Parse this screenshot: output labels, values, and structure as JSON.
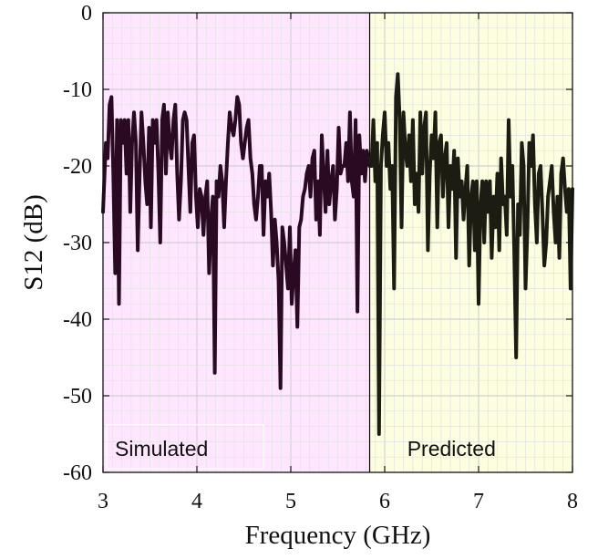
{
  "chart_data": {
    "type": "line",
    "title": "",
    "xlabel": "Frequency (GHz)",
    "ylabel": "S12 (dB)",
    "xlim": [
      3,
      8
    ],
    "ylim": [
      -60,
      0
    ],
    "xticks": [
      3,
      4,
      5,
      6,
      7,
      8
    ],
    "xtick_labels": [
      "3",
      "4",
      "5",
      "6",
      "7",
      "8"
    ],
    "yticks": [
      0,
      -10,
      -20,
      -30,
      -40,
      -50,
      -60
    ],
    "ytick_labels": [
      "0",
      "-10",
      "-20",
      "-30",
      "-40",
      "-50",
      "-60"
    ],
    "grid": true,
    "regions": [
      {
        "label": "Simulated",
        "x_range": [
          3,
          5.84
        ],
        "color": "#ffe6ff"
      },
      {
        "label": "Predicted",
        "x_range": [
          5.84,
          8
        ],
        "color": "#fdfde0"
      }
    ],
    "boundary_x": 5.84,
    "series": [
      {
        "color": "#2a0a22",
        "x": [
          3.0,
          3.03,
          3.05,
          3.07,
          3.09,
          3.11,
          3.13,
          3.15,
          3.17,
          3.19,
          3.21,
          3.23,
          3.25,
          3.27,
          3.29,
          3.31,
          3.33,
          3.35,
          3.37,
          3.39,
          3.41,
          3.43,
          3.45,
          3.47,
          3.49,
          3.51,
          3.53,
          3.55,
          3.57,
          3.59,
          3.61,
          3.63,
          3.65,
          3.67,
          3.69,
          3.71,
          3.73,
          3.75,
          3.77,
          3.79,
          3.81,
          3.83,
          3.85,
          3.87,
          3.89,
          3.91,
          3.93,
          3.95,
          3.97,
          3.99,
          4.01,
          4.03,
          4.05,
          4.07,
          4.09,
          4.11,
          4.13,
          4.15,
          4.17,
          4.19,
          4.21,
          4.23,
          4.25,
          4.27,
          4.29,
          4.31,
          4.33,
          4.35,
          4.37,
          4.39,
          4.41,
          4.43,
          4.45,
          4.47,
          4.49,
          4.51,
          4.53,
          4.55,
          4.57,
          4.59,
          4.61,
          4.63,
          4.65,
          4.67,
          4.69,
          4.71,
          4.73,
          4.75,
          4.77,
          4.79,
          4.81,
          4.83,
          4.85,
          4.87,
          4.89,
          4.91,
          4.93,
          4.95,
          4.97,
          4.99,
          5.01,
          5.03,
          5.05,
          5.07,
          5.09,
          5.11,
          5.13,
          5.15,
          5.17,
          5.19,
          5.21,
          5.23,
          5.25,
          5.27,
          5.29,
          5.31,
          5.33,
          5.35,
          5.37,
          5.39,
          5.41,
          5.43,
          5.45,
          5.47,
          5.49,
          5.51,
          5.53,
          5.55,
          5.57,
          5.59,
          5.61,
          5.63,
          5.65,
          5.67,
          5.69,
          5.71,
          5.73,
          5.75,
          5.77,
          5.79,
          5.81,
          5.84
        ],
        "values": [
          -26,
          -17,
          -19,
          -12,
          -11,
          -21,
          -34,
          -14,
          -38,
          -14,
          -17,
          -14,
          -21,
          -14,
          -26,
          -17,
          -13,
          -17,
          -31,
          -21,
          -13,
          -17,
          -22,
          -25,
          -15,
          -28,
          -14,
          -17,
          -14,
          -21,
          -30,
          -14,
          -12,
          -21,
          -13,
          -17,
          -19,
          -14,
          -12,
          -21,
          -27,
          -22,
          -14,
          -13,
          -14,
          -20,
          -26,
          -17,
          -16,
          -24,
          -28,
          -23,
          -24,
          -29,
          -24,
          -22,
          -34,
          -27,
          -24,
          -47,
          -22,
          -24,
          -20,
          -22,
          -28,
          -22,
          -17,
          -13,
          -15,
          -16,
          -14,
          -11,
          -12,
          -17,
          -19,
          -17,
          -15,
          -14,
          -19,
          -21,
          -25,
          -27,
          -24,
          -20,
          -20,
          -29,
          -22,
          -24,
          -21,
          -26,
          -33,
          -27,
          -30,
          -35,
          -49,
          -28,
          -30,
          -33,
          -36,
          -28,
          -38,
          -34,
          -31,
          -41,
          -28,
          -27,
          -24,
          -23,
          -21,
          -20,
          -24,
          -19,
          -18,
          -27,
          -22,
          -29,
          -16,
          -21,
          -26,
          -18,
          -25,
          -22,
          -20,
          -27,
          -23,
          -15,
          -21,
          -20,
          -20,
          -17,
          -22,
          -13,
          -22,
          -24,
          -14,
          -39,
          -16,
          -21,
          -18,
          -22,
          -18,
          -20
        ]
      },
      {
        "color": "#1c1c12",
        "x": [
          5.84,
          5.86,
          5.88,
          5.9,
          5.92,
          5.94,
          5.96,
          5.98,
          6.0,
          6.02,
          6.04,
          6.06,
          6.08,
          6.1,
          6.12,
          6.14,
          6.16,
          6.18,
          6.2,
          6.22,
          6.24,
          6.26,
          6.28,
          6.3,
          6.32,
          6.34,
          6.36,
          6.38,
          6.4,
          6.42,
          6.44,
          6.46,
          6.48,
          6.5,
          6.52,
          6.54,
          6.56,
          6.58,
          6.6,
          6.62,
          6.64,
          6.66,
          6.68,
          6.7,
          6.72,
          6.74,
          6.76,
          6.78,
          6.8,
          6.82,
          6.84,
          6.86,
          6.88,
          6.9,
          6.92,
          6.94,
          6.96,
          6.98,
          7.0,
          7.02,
          7.04,
          7.06,
          7.08,
          7.1,
          7.12,
          7.14,
          7.16,
          7.18,
          7.2,
          7.22,
          7.24,
          7.26,
          7.28,
          7.3,
          7.32,
          7.34,
          7.36,
          7.38,
          7.4,
          7.42,
          7.44,
          7.46,
          7.48,
          7.5,
          7.52,
          7.54,
          7.56,
          7.58,
          7.6,
          7.62,
          7.64,
          7.66,
          7.68,
          7.7,
          7.72,
          7.74,
          7.76,
          7.78,
          7.8,
          7.82,
          7.84,
          7.86,
          7.88,
          7.9,
          7.92,
          7.94,
          7.96,
          7.98,
          8.0
        ],
        "values": [
          -19,
          -20,
          -14,
          -22,
          -17,
          -55,
          -20,
          -16,
          -13,
          -20,
          -17,
          -23,
          -20,
          -36,
          -11,
          -8,
          -14,
          -28,
          -13,
          -18,
          -20,
          -16,
          -22,
          -14,
          -25,
          -21,
          -26,
          -13,
          -21,
          -15,
          -13,
          -31,
          -21,
          -16,
          -19,
          -13,
          -28,
          -17,
          -16,
          -24,
          -19,
          -17,
          -28,
          -20,
          -23,
          -18,
          -32,
          -19,
          -24,
          -22,
          -27,
          -23,
          -20,
          -33,
          -24,
          -22,
          -31,
          -22,
          -38,
          -25,
          -22,
          -30,
          -22,
          -26,
          -22,
          -32,
          -24,
          -28,
          -21,
          -31,
          -19,
          -25,
          -24,
          -29,
          -14,
          -24,
          -20,
          -31,
          -45,
          -25,
          -29,
          -17,
          -20,
          -36,
          -28,
          -17,
          -20,
          -16,
          -25,
          -30,
          -21,
          -20,
          -26,
          -33,
          -30,
          -24,
          -22,
          -20,
          -26,
          -30,
          -24,
          -32,
          -21,
          -19,
          -23,
          -26,
          -23,
          -36,
          -23
        ]
      }
    ]
  }
}
